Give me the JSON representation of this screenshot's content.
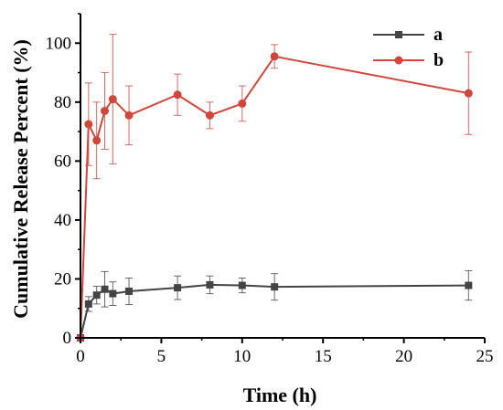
{
  "chart_data": {
    "type": "line",
    "xlabel": "Time (h)",
    "ylabel": "Cumulative Release Percent (%)",
    "xlim": [
      0,
      25
    ],
    "ylim": [
      0,
      110
    ],
    "xticks": [
      0,
      5,
      10,
      15,
      20,
      25
    ],
    "yticks": [
      0,
      20,
      40,
      60,
      80,
      100
    ],
    "grid": false,
    "legend_position": "top-right",
    "series": [
      {
        "name": "a",
        "color": "#444444",
        "marker": "square",
        "x": [
          0,
          0.5,
          1,
          1.5,
          2,
          3,
          6,
          8,
          10,
          12,
          24
        ],
        "y": [
          0,
          11.5,
          14.5,
          16.5,
          15,
          15.8,
          17,
          18,
          17.8,
          17.3,
          17.8
        ],
        "error": [
          0,
          2.5,
          3,
          6,
          4,
          4.5,
          4,
          3,
          2.5,
          4.5,
          5
        ]
      },
      {
        "name": "b",
        "color": "#d0463a",
        "marker": "circle",
        "x": [
          0,
          0.5,
          1,
          1.5,
          2,
          3,
          6,
          8,
          10,
          12,
          24
        ],
        "y": [
          0,
          72.5,
          67,
          77,
          81,
          75.5,
          82.5,
          75.5,
          79.5,
          95.5,
          83
        ],
        "error": [
          0,
          14,
          13,
          13,
          22,
          10,
          7,
          4.5,
          6,
          4,
          14
        ]
      }
    ]
  }
}
